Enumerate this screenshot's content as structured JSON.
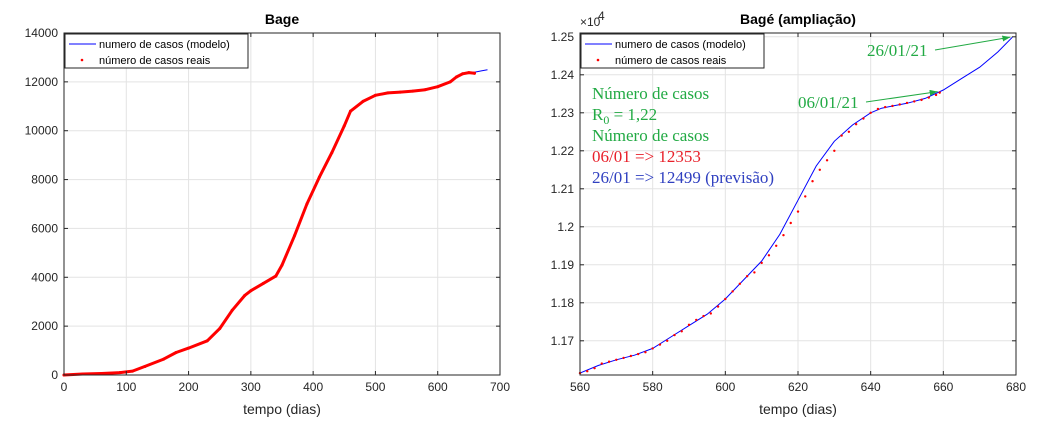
{
  "colors": {
    "model": "#0000ff",
    "real": "#ff0000",
    "annotation_green": "#22aa44",
    "annotation_red": "#e8202a",
    "annotation_blue": "#3040c0",
    "grid": "#e3e3e3",
    "axis": "#262626"
  },
  "chart_data": [
    {
      "type": "line",
      "title": "Bage",
      "xlabel": "tempo (dias)",
      "ylabel": "",
      "xlim": [
        0,
        700
      ],
      "ylim": [
        0,
        14000
      ],
      "xticks": [
        0,
        100,
        200,
        300,
        400,
        500,
        600,
        700
      ],
      "xtick_labels": [
        "0",
        "100",
        "200",
        "300",
        "400",
        "500",
        "600",
        "700"
      ],
      "yticks": [
        0,
        2000,
        4000,
        6000,
        8000,
        10000,
        12000,
        14000
      ],
      "ytick_labels": [
        "0",
        "2000",
        "4000",
        "6000",
        "8000",
        "10000",
        "12000",
        "14000"
      ],
      "grid": true,
      "legend_position": "top-left",
      "legend": [
        "numero de casos (modelo)",
        "número de casos reais"
      ],
      "series": [
        {
          "name": "numero de casos (modelo)",
          "style": "line",
          "x": [
            0,
            30,
            60,
            90,
            110,
            130,
            160,
            180,
            200,
            230,
            250,
            270,
            290,
            300,
            320,
            340,
            350,
            370,
            390,
            410,
            430,
            450,
            460,
            480,
            500,
            520,
            540,
            560,
            580,
            600,
            620,
            630,
            640,
            650,
            660,
            670,
            680
          ],
          "y": [
            0,
            40,
            60,
            100,
            160,
            350,
            650,
            920,
            1100,
            1400,
            1900,
            2650,
            3250,
            3450,
            3750,
            4050,
            4500,
            5700,
            7000,
            8100,
            9100,
            10200,
            10800,
            11200,
            11450,
            11550,
            11580,
            11620,
            11680,
            11800,
            12000,
            12200,
            12330,
            12380,
            12400,
            12450,
            12499
          ]
        },
        {
          "name": "número de casos reais",
          "style": "points",
          "x": [
            0,
            30,
            60,
            90,
            110,
            130,
            160,
            180,
            200,
            230,
            250,
            270,
            290,
            300,
            320,
            340,
            350,
            370,
            390,
            410,
            430,
            450,
            460,
            480,
            500,
            520,
            540,
            560,
            580,
            600,
            620,
            630,
            640,
            650,
            659
          ],
          "y": [
            0,
            40,
            60,
            100,
            160,
            350,
            650,
            920,
            1100,
            1400,
            1900,
            2650,
            3250,
            3450,
            3750,
            4050,
            4500,
            5700,
            7000,
            8100,
            9100,
            10200,
            10800,
            11200,
            11450,
            11550,
            11580,
            11620,
            11680,
            11800,
            12000,
            12200,
            12330,
            12380,
            12353
          ]
        }
      ]
    },
    {
      "type": "line",
      "title": "Bagé (ampliação)",
      "xlabel": "tempo (dias)",
      "ylabel": "",
      "exponent_label": "×10",
      "exponent_power": "4",
      "xlim": [
        560,
        680
      ],
      "ylim": [
        11610,
        12510
      ],
      "xticks": [
        560,
        580,
        600,
        620,
        640,
        660,
        680
      ],
      "xtick_labels": [
        "560",
        "580",
        "600",
        "620",
        "640",
        "660",
        "680"
      ],
      "yticks": [
        11700,
        11800,
        11900,
        12000,
        12100,
        12200,
        12300,
        12400,
        12500
      ],
      "ytick_labels": [
        "1.17",
        "1.18",
        "1.19",
        "1.2",
        "1.21",
        "1.22",
        "1.23",
        "1.24",
        "1.25"
      ],
      "grid": true,
      "legend_position": "top-left",
      "legend": [
        "numero de casos (modelo)",
        "número de casos reais"
      ],
      "series": [
        {
          "name": "numero de casos (modelo)",
          "style": "line",
          "x": [
            560,
            565,
            570,
            575,
            580,
            585,
            590,
            595,
            600,
            605,
            610,
            615,
            620,
            625,
            630,
            635,
            640,
            643,
            646,
            650,
            655,
            660,
            665,
            670,
            675,
            679
          ],
          "y": [
            11615,
            11635,
            11650,
            11662,
            11680,
            11710,
            11740,
            11770,
            11810,
            11860,
            11910,
            11980,
            12070,
            12160,
            12225,
            12268,
            12300,
            12312,
            12318,
            12325,
            12338,
            12360,
            12390,
            12420,
            12460,
            12499
          ]
        },
        {
          "name": "número de casos reais",
          "style": "points",
          "x": [
            560,
            562,
            564,
            566,
            568,
            570,
            572,
            574,
            576,
            578,
            580,
            582,
            584,
            586,
            588,
            590,
            592,
            594,
            596,
            598,
            600,
            602,
            604,
            606,
            608,
            610,
            612,
            614,
            616,
            618,
            620,
            622,
            624,
            626,
            628,
            630,
            632,
            634,
            636,
            638,
            640,
            642,
            644,
            646,
            648,
            650,
            652,
            654,
            656,
            658,
            659
          ],
          "y": [
            11615,
            11620,
            11628,
            11640,
            11645,
            11650,
            11655,
            11660,
            11665,
            11670,
            11680,
            11690,
            11700,
            11715,
            11725,
            11742,
            11755,
            11765,
            11772,
            11790,
            11810,
            11830,
            11850,
            11870,
            11880,
            11905,
            11925,
            11950,
            11978,
            12010,
            12040,
            12080,
            12120,
            12150,
            12175,
            12200,
            12240,
            12250,
            12270,
            12285,
            12300,
            12310,
            12315,
            12318,
            12322,
            12326,
            12330,
            12334,
            12340,
            12347,
            12353
          ]
        }
      ],
      "annotations": {
        "arrow1_label": "26/01/21",
        "arrow1_target": [
          679,
          12499
        ],
        "arrow2_label": "06/01/21",
        "arrow2_target": [
          659,
          12353
        ],
        "line1": "Número de casos",
        "line2_prefix": "R",
        "line2_sub": "0",
        "line2_suffix": " = 1,22",
        "line3": "Número de casos",
        "line4": "06/01 => 12353",
        "line5": "26/01 => 12499 (previsão)"
      }
    }
  ]
}
